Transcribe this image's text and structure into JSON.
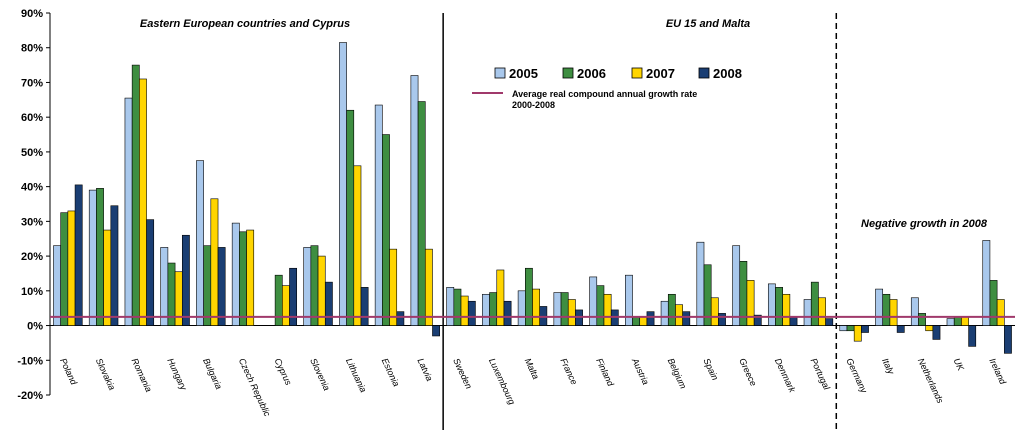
{
  "chart_data": {
    "type": "bar",
    "ylim": [
      -20,
      90
    ],
    "yticks": [
      -20,
      -10,
      0,
      10,
      20,
      30,
      40,
      50,
      60,
      70,
      80,
      90
    ],
    "ytick_labels": [
      "-20%",
      "-10%",
      "0%",
      "10%",
      "20%",
      "30%",
      "40%",
      "50%",
      "60%",
      "70%",
      "80%",
      "90%"
    ],
    "grid": false,
    "legend_position": "top-center",
    "categories": [
      "Poland",
      "Slovakia",
      "Romania",
      "Hungary",
      "Bulgaria",
      "Czech Republic",
      "Cyprus",
      "Slovenia",
      "Lithuania",
      "Estonia",
      "Latvia",
      "Sweden",
      "Luxembourg",
      "Malta",
      "France",
      "Finland",
      "Austria",
      "Belgium",
      "Spain",
      "Greece",
      "Denmark",
      "Portugal",
      "Germany",
      "Italy",
      "Netherlands",
      "UK",
      "Ireland"
    ],
    "series": [
      {
        "name": "2005",
        "color": "#a9c8ec",
        "values": [
          23,
          39,
          65.5,
          22.5,
          47.5,
          29.5,
          null,
          22.5,
          81.5,
          63.5,
          72,
          11,
          9,
          10,
          9.5,
          14,
          14.5,
          7,
          24,
          23,
          12,
          7.5,
          -1.5,
          10.5,
          8,
          2,
          24.5
        ]
      },
      {
        "name": "2006",
        "color": "#3e8e41",
        "values": [
          32.5,
          39.5,
          75,
          18,
          23,
          27,
          14.5,
          23,
          62,
          55,
          64.5,
          10.5,
          9.5,
          16.5,
          9.5,
          11.5,
          2.5,
          9,
          17.5,
          18.5,
          11,
          12.5,
          -1.5,
          9,
          3.5,
          2.5,
          13
        ]
      },
      {
        "name": "2007",
        "color": "#ffd500",
        "values": [
          33,
          27.5,
          71,
          15.5,
          36.5,
          27.5,
          11.5,
          20,
          46,
          22,
          22,
          8.5,
          16,
          10.5,
          7.5,
          9,
          2.5,
          6,
          8,
          13,
          9,
          8,
          -4.5,
          7.5,
          -1.5,
          2.5,
          7.5
        ]
      },
      {
        "name": "2008",
        "color": "#1a3e73",
        "values": [
          40.5,
          34.5,
          30.5,
          26,
          22.5,
          null,
          16.5,
          12.5,
          11,
          4,
          -3,
          7,
          7,
          5.5,
          4.5,
          4.5,
          4,
          4,
          3.5,
          3,
          2.5,
          2,
          -2,
          -2,
          -4,
          -6,
          -8
        ]
      }
    ],
    "reference_line": {
      "label": "Average real compound annual growth rate 2000-2008",
      "value": 2.5,
      "color": "#a0396b"
    },
    "group_dividers": [
      {
        "after_index": 10,
        "style": "solid"
      },
      {
        "after_index": 21,
        "style": "dashed"
      }
    ],
    "annotations": [
      {
        "text": "Eastern European countries and Cyprus"
      },
      {
        "text": "EU 15 and Malta"
      },
      {
        "text": "Negative growth in 2008"
      }
    ]
  }
}
